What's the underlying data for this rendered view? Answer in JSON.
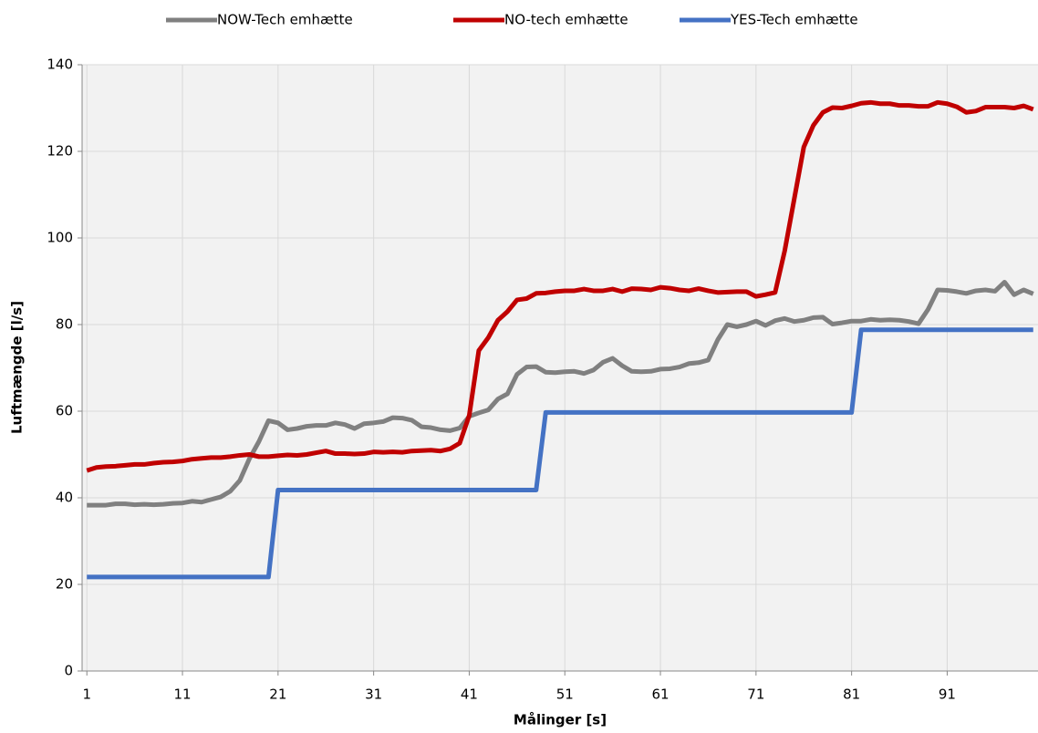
{
  "chart_data": {
    "type": "line",
    "x_label": "Målinger [s]",
    "y_label": "Luftmængde [l/s]",
    "x": [
      1,
      2,
      3,
      4,
      5,
      6,
      7,
      8,
      9,
      10,
      11,
      12,
      13,
      14,
      15,
      16,
      17,
      18,
      19,
      20,
      21,
      22,
      23,
      24,
      25,
      26,
      27,
      28,
      29,
      30,
      31,
      32,
      33,
      34,
      35,
      36,
      37,
      38,
      39,
      40,
      41,
      42,
      43,
      44,
      45,
      46,
      47,
      48,
      49,
      50,
      51,
      52,
      53,
      54,
      55,
      56,
      57,
      58,
      59,
      60,
      61,
      62,
      63,
      64,
      65,
      66,
      67,
      68,
      69,
      70,
      71,
      72,
      73,
      74,
      75,
      76,
      77,
      78,
      79,
      80,
      81,
      82,
      83,
      84,
      85,
      86,
      87,
      88,
      89,
      90,
      91,
      92,
      93,
      94,
      95,
      96,
      97,
      98,
      99,
      100
    ],
    "series": [
      {
        "name": "NOW-Tech emhætte",
        "color": "#808080",
        "values": [
          38.3,
          38.3,
          38.3,
          38.6,
          38.6,
          38.4,
          38.5,
          38.4,
          38.5,
          38.7,
          38.8,
          39.2,
          39,
          39.6,
          40.2,
          41.5,
          44,
          49,
          53,
          57.8,
          57.3,
          55.7,
          56,
          56.5,
          56.7,
          56.7,
          57.3,
          56.9,
          56,
          57.1,
          57.3,
          57.6,
          58.5,
          58.4,
          57.9,
          56.4,
          56.2,
          55.7,
          55.5,
          56.1,
          58.8,
          59.6,
          60.3,
          62.8,
          64,
          68.5,
          70.2,
          70.3,
          69,
          68.9,
          69.1,
          69.2,
          68.7,
          69.5,
          71.3,
          72.2,
          70.5,
          69.2,
          69.1,
          69.2,
          69.7,
          69.8,
          70.2,
          71,
          71.2,
          71.8,
          76.5,
          80,
          79.5,
          80,
          80.8,
          79.8,
          80.9,
          81.4,
          80.7,
          81,
          81.6,
          81.7,
          80.1,
          80.4,
          80.8,
          80.8,
          81.2,
          81,
          81.1,
          81,
          80.7,
          80.2,
          83.5,
          88,
          87.9,
          87.6,
          87.2,
          87.8,
          88,
          87.7,
          89.8,
          86.9,
          88,
          87.1
        ]
      },
      {
        "name": "NO-tech emhætte",
        "color": "#c00000",
        "values": [
          46.3,
          47,
          47.2,
          47.3,
          47.5,
          47.7,
          47.7,
          48,
          48.2,
          48.3,
          48.5,
          48.9,
          49.1,
          49.3,
          49.3,
          49.5,
          49.8,
          50,
          49.5,
          49.5,
          49.7,
          49.9,
          49.8,
          50,
          50.4,
          50.8,
          50.2,
          50.2,
          50.1,
          50.2,
          50.6,
          50.5,
          50.6,
          50.5,
          50.8,
          50.9,
          51,
          50.8,
          51.3,
          52.6,
          59,
          74,
          77,
          81,
          83,
          85.7,
          86,
          87.2,
          87.3,
          87.6,
          87.8,
          87.8,
          88.2,
          87.8,
          87.8,
          88.2,
          87.6,
          88.3,
          88.2,
          88,
          88.6,
          88.4,
          88,
          87.8,
          88.3,
          87.8,
          87.4,
          87.5,
          87.6,
          87.6,
          86.5,
          86.9,
          87.4,
          97,
          109,
          121,
          126,
          129,
          130.1,
          130,
          130.5,
          131.1,
          131.3,
          131,
          131,
          130.6,
          130.6,
          130.4,
          130.4,
          131.3,
          131,
          130.3,
          129,
          129.3,
          130.2,
          130.2,
          130.2,
          130,
          130.5,
          129.7
        ]
      },
      {
        "name": "YES-Tech emhætte",
        "color": "#4472c4",
        "values": [
          21.7,
          21.7,
          21.7,
          21.7,
          21.7,
          21.7,
          21.7,
          21.7,
          21.7,
          21.7,
          21.7,
          21.7,
          21.7,
          21.7,
          21.7,
          21.7,
          21.7,
          21.7,
          21.7,
          21.7,
          41.8,
          41.8,
          41.8,
          41.8,
          41.8,
          41.8,
          41.8,
          41.8,
          41.8,
          41.8,
          41.8,
          41.8,
          41.8,
          41.8,
          41.8,
          41.8,
          41.8,
          41.8,
          41.8,
          41.8,
          41.8,
          41.8,
          41.8,
          41.8,
          41.8,
          41.8,
          41.8,
          41.8,
          59.7,
          59.7,
          59.7,
          59.7,
          59.7,
          59.7,
          59.7,
          59.7,
          59.7,
          59.7,
          59.7,
          59.7,
          59.7,
          59.7,
          59.7,
          59.7,
          59.7,
          59.7,
          59.7,
          59.7,
          59.7,
          59.7,
          59.7,
          59.7,
          59.7,
          59.7,
          59.7,
          59.7,
          59.7,
          59.7,
          59.7,
          59.7,
          59.7,
          78.8,
          78.8,
          78.8,
          78.8,
          78.8,
          78.8,
          78.8,
          78.8,
          78.8,
          78.8,
          78.8,
          78.8,
          78.8,
          78.8,
          78.8,
          78.8,
          78.8,
          78.8,
          78.8
        ]
      }
    ],
    "xlim": [
      0.5,
      100.5
    ],
    "xticks": [
      1,
      11,
      21,
      31,
      41,
      51,
      61,
      71,
      81,
      91
    ],
    "ylim": [
      0,
      140
    ],
    "yticks": [
      0,
      20,
      40,
      60,
      80,
      100,
      120,
      140
    ],
    "grid": true,
    "legend": "top"
  }
}
